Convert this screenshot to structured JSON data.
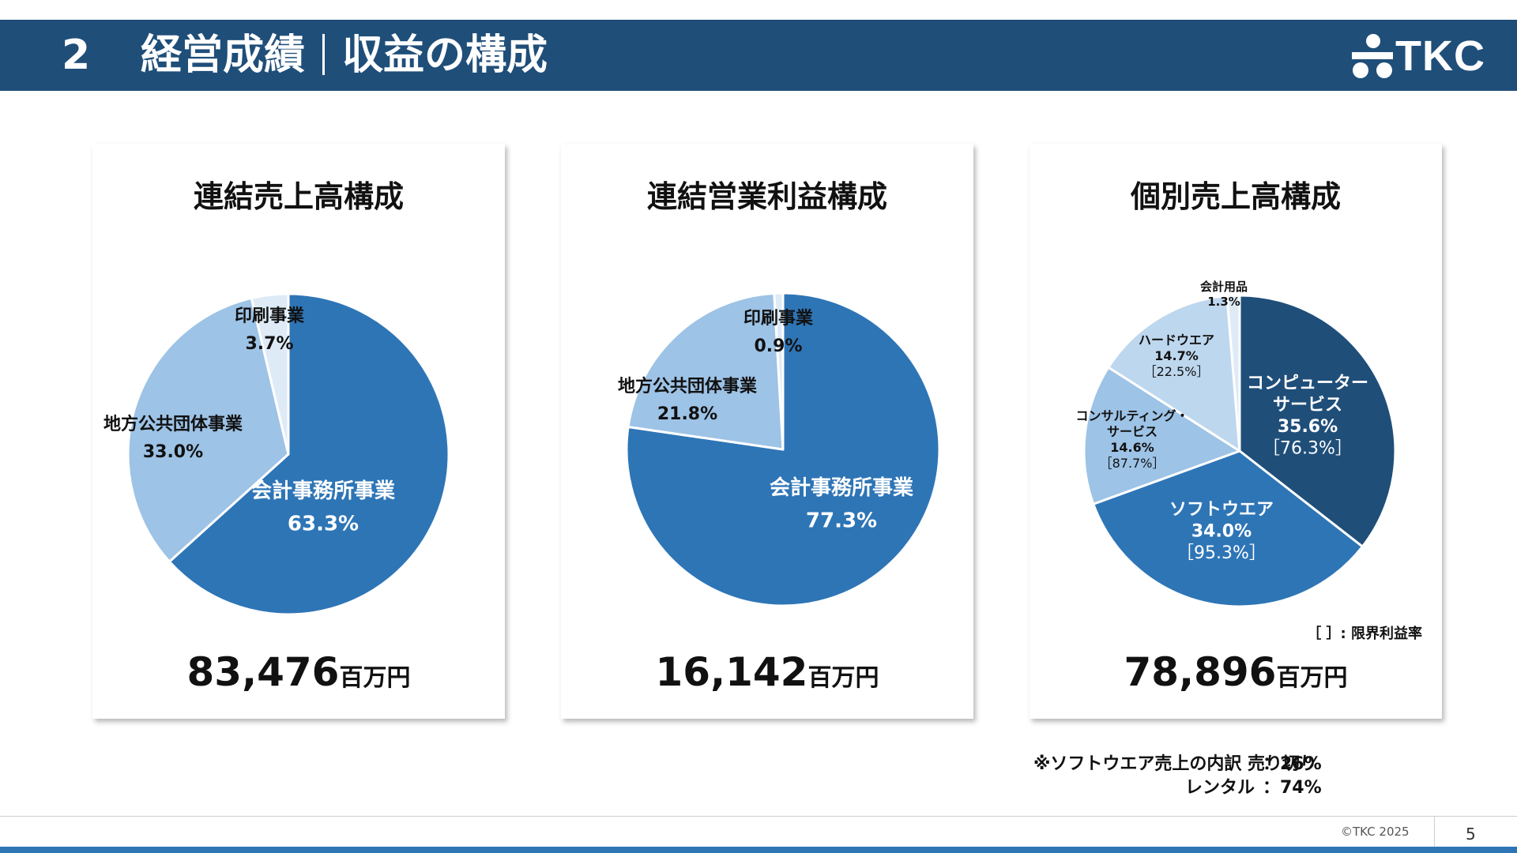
{
  "header": {
    "section_number": "2",
    "title_main": "経営成績",
    "title_sub": "収益の構成",
    "logo_text": "TKC"
  },
  "colors": {
    "header_bg": "#1f4e79",
    "navy": "#1f4e79",
    "mid_blue": "#2e75b6",
    "light_blue": "#9dc3e6",
    "lighter_blue": "#bdd7ee",
    "pale_blue": "#deebf7"
  },
  "chart_data": [
    {
      "type": "pie",
      "title": "連結売上高構成",
      "total_value": "83,476",
      "total_unit": "百万円",
      "slices": [
        {
          "name": "会計事務所事業",
          "value": 63.3,
          "label": "63.3%",
          "color": "#2e75b6"
        },
        {
          "name": "地方公共団体事業",
          "value": 33.0,
          "label": "33.0%",
          "color": "#9dc3e6"
        },
        {
          "name": "印刷事業",
          "value": 3.7,
          "label": "3.7%",
          "color": "#deebf7"
        }
      ]
    },
    {
      "type": "pie",
      "title": "連結営業利益構成",
      "total_value": "16,142",
      "total_unit": "百万円",
      "slices": [
        {
          "name": "会計事務所事業",
          "value": 77.3,
          "label": "77.3%",
          "color": "#2e75b6"
        },
        {
          "name": "地方公共団体事業",
          "value": 21.8,
          "label": "21.8%",
          "color": "#9dc3e6"
        },
        {
          "name": "印刷事業",
          "value": 0.9,
          "label": "0.9%",
          "color": "#deebf7"
        }
      ]
    },
    {
      "type": "pie",
      "title": "個別売上高構成",
      "total_value": "78,896",
      "total_unit": "百万円",
      "note": "［ ］: 限界利益率",
      "slices": [
        {
          "name": "コンピューター\nサービス",
          "value": 35.6,
          "label": "35.6%",
          "margin": "［76.3%］",
          "color": "#1f4e79"
        },
        {
          "name": "ソフトウエア",
          "value": 34.0,
          "label": "34.0%",
          "margin": "［95.3%］",
          "color": "#2e75b6"
        },
        {
          "name": "コンサルティング・\nサービス",
          "value": 14.6,
          "label": "14.6%",
          "margin": "［87.7%］",
          "color": "#9dc3e6"
        },
        {
          "name": "ハードウエア",
          "value": 14.7,
          "label": "14.7%",
          "margin": "［22.5%］",
          "color": "#bdd7ee"
        },
        {
          "name": "会計用品",
          "value": 1.3,
          "label": "1.3%",
          "color": "#deebf7"
        }
      ]
    }
  ],
  "footnote": {
    "line1_label": "※ソフトウエア売上の内訳 売り切り",
    "line1_value": "：26%",
    "line2_label": "レンタル",
    "line2_value": "：74%"
  },
  "footer": {
    "copyright": "©TKC 2025",
    "page_number": "5"
  }
}
